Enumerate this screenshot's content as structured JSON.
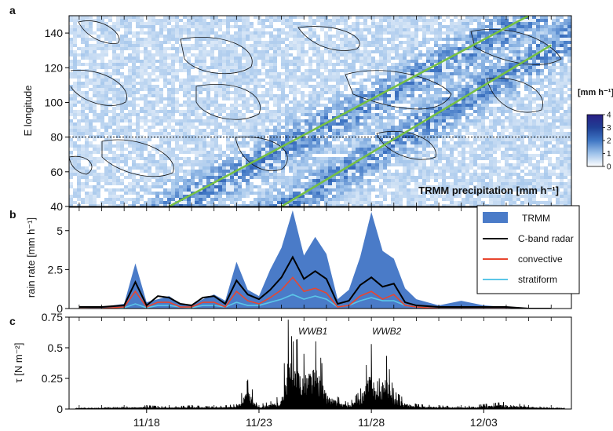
{
  "panels": {
    "a": "a",
    "b": "b",
    "c": "c"
  },
  "chart_data": [
    {
      "type": "heatmap",
      "panel": "a",
      "ylabel": "E longitude",
      "annotation": "TRMM precipitation [mm h⁻¹]",
      "ylim": [
        40,
        150
      ],
      "yticks": [
        "40",
        "60",
        "80",
        "100",
        "120",
        "140"
      ],
      "reference_line_y": 80,
      "colorbar": {
        "unit": "[mm h⁻¹]",
        "range": [
          0,
          4
        ],
        "ticks": [
          "0",
          "1",
          "2",
          "3",
          "4"
        ],
        "colors": [
          "#ffffff",
          "#9ec2ea",
          "#3f76c4",
          "#1f3f95",
          "#2a1f85"
        ]
      },
      "propagation_lines": [
        {
          "from": [
            "11/19",
            40
          ],
          "to": [
            "12/05",
            150
          ]
        },
        {
          "from": [
            "11/24",
            40
          ],
          "to": [
            "12/06",
            133
          ]
        }
      ],
      "line_color": "#76c043"
    },
    {
      "type": "area",
      "panel": "b",
      "ylabel": "rain rate [mm h⁻¹]",
      "ylim": [
        0,
        6.5
      ],
      "yticks": [
        "0",
        "2.5",
        "5"
      ],
      "x": [
        "11/15",
        "11/16",
        "11/17",
        "11/17.5",
        "11/18",
        "11/18.5",
        "11/19",
        "11/19.5",
        "11/20",
        "11/20.5",
        "11/21",
        "11/21.5",
        "11/22",
        "11/22.5",
        "11/23",
        "11/23.5",
        "11/24",
        "11/24.5",
        "11/25",
        "11/25.5",
        "11/26",
        "11/26.5",
        "11/27",
        "11/27.5",
        "11/28",
        "11/28.5",
        "11/29",
        "11/29.5",
        "11/30",
        "12/01",
        "12/02",
        "12/03",
        "12/04",
        "12/05",
        "12/06"
      ],
      "series": [
        {
          "name": "TRMM",
          "color": "#4a7bc8",
          "values": [
            0,
            0.1,
            0.3,
            2.9,
            0.4,
            0.6,
            0.8,
            0.3,
            0.2,
            0.6,
            0.9,
            0.5,
            3.0,
            1.2,
            0.8,
            2.5,
            3.9,
            6.3,
            3.4,
            4.6,
            3.5,
            0.6,
            1.2,
            3.3,
            6.2,
            3.7,
            3.2,
            1.3,
            0.6,
            0.2,
            0.5,
            0.2,
            0.1,
            0,
            0
          ]
        },
        {
          "name": "C-band radar",
          "color": "#000000",
          "values": [
            0.1,
            0.1,
            0.2,
            1.7,
            0.2,
            0.8,
            0.7,
            0.3,
            0.2,
            0.7,
            0.8,
            0.3,
            1.8,
            0.9,
            0.6,
            1.2,
            2.0,
            3.3,
            1.9,
            2.4,
            1.9,
            0.3,
            0.5,
            1.5,
            2.0,
            1.4,
            1.6,
            0.4,
            0.2,
            0.1,
            0.1,
            0.1,
            0.1,
            0,
            0
          ]
        },
        {
          "name": "convective",
          "color": "#e8462f",
          "values": [
            0,
            0,
            0.1,
            1.1,
            0.1,
            0.4,
            0.4,
            0.1,
            0.1,
            0.4,
            0.4,
            0.1,
            1.1,
            0.5,
            0.3,
            0.7,
            1.2,
            2.0,
            1.1,
            1.3,
            1.0,
            0.1,
            0.2,
            0.8,
            1.1,
            0.6,
            0.9,
            0.2,
            0.1,
            0,
            0,
            0,
            0,
            0,
            0
          ]
        },
        {
          "name": "stratiform",
          "color": "#5bc6e8",
          "values": [
            0,
            0,
            0.05,
            0.3,
            0.05,
            0.2,
            0.2,
            0.1,
            0.05,
            0.2,
            0.2,
            0.1,
            0.4,
            0.2,
            0.2,
            0.4,
            0.6,
            0.9,
            0.6,
            0.8,
            0.6,
            0.1,
            0.2,
            0.5,
            0.7,
            0.5,
            0.5,
            0.2,
            0.1,
            0,
            0,
            0,
            0,
            0,
            0
          ]
        }
      ]
    },
    {
      "type": "line",
      "panel": "c",
      "ylabel": "τ [N m⁻²]",
      "ylim": [
        0,
        0.75
      ],
      "yticks": [
        "0",
        "0.25",
        "0.5",
        "0.75"
      ],
      "xticks": [
        "11/18",
        "11/23",
        "11/28",
        "12/03"
      ],
      "annotations": [
        "WWB1",
        "WWB2"
      ],
      "series": [
        {
          "name": "",
          "color": "#000000",
          "x": [
            15,
            16,
            17,
            18,
            19,
            20,
            21,
            22,
            22.5,
            23,
            23.5,
            24,
            24.3,
            24.5,
            24.8,
            25,
            25.3,
            25.6,
            26,
            26.5,
            27,
            27.5,
            28,
            28.3,
            28.6,
            29,
            29.5,
            30,
            31,
            32,
            33,
            34,
            35,
            36
          ],
          "values": [
            0.01,
            0.01,
            0.02,
            0.03,
            0.02,
            0.03,
            0.02,
            0.04,
            0.24,
            0.04,
            0.06,
            0.12,
            0.73,
            0.55,
            0.58,
            0.45,
            0.56,
            0.55,
            0.2,
            0.1,
            0.05,
            0.15,
            0.53,
            0.2,
            0.5,
            0.15,
            0.08,
            0.04,
            0.03,
            0.02,
            0.04,
            0.06,
            0.03,
            0.01
          ]
        }
      ]
    }
  ]
}
